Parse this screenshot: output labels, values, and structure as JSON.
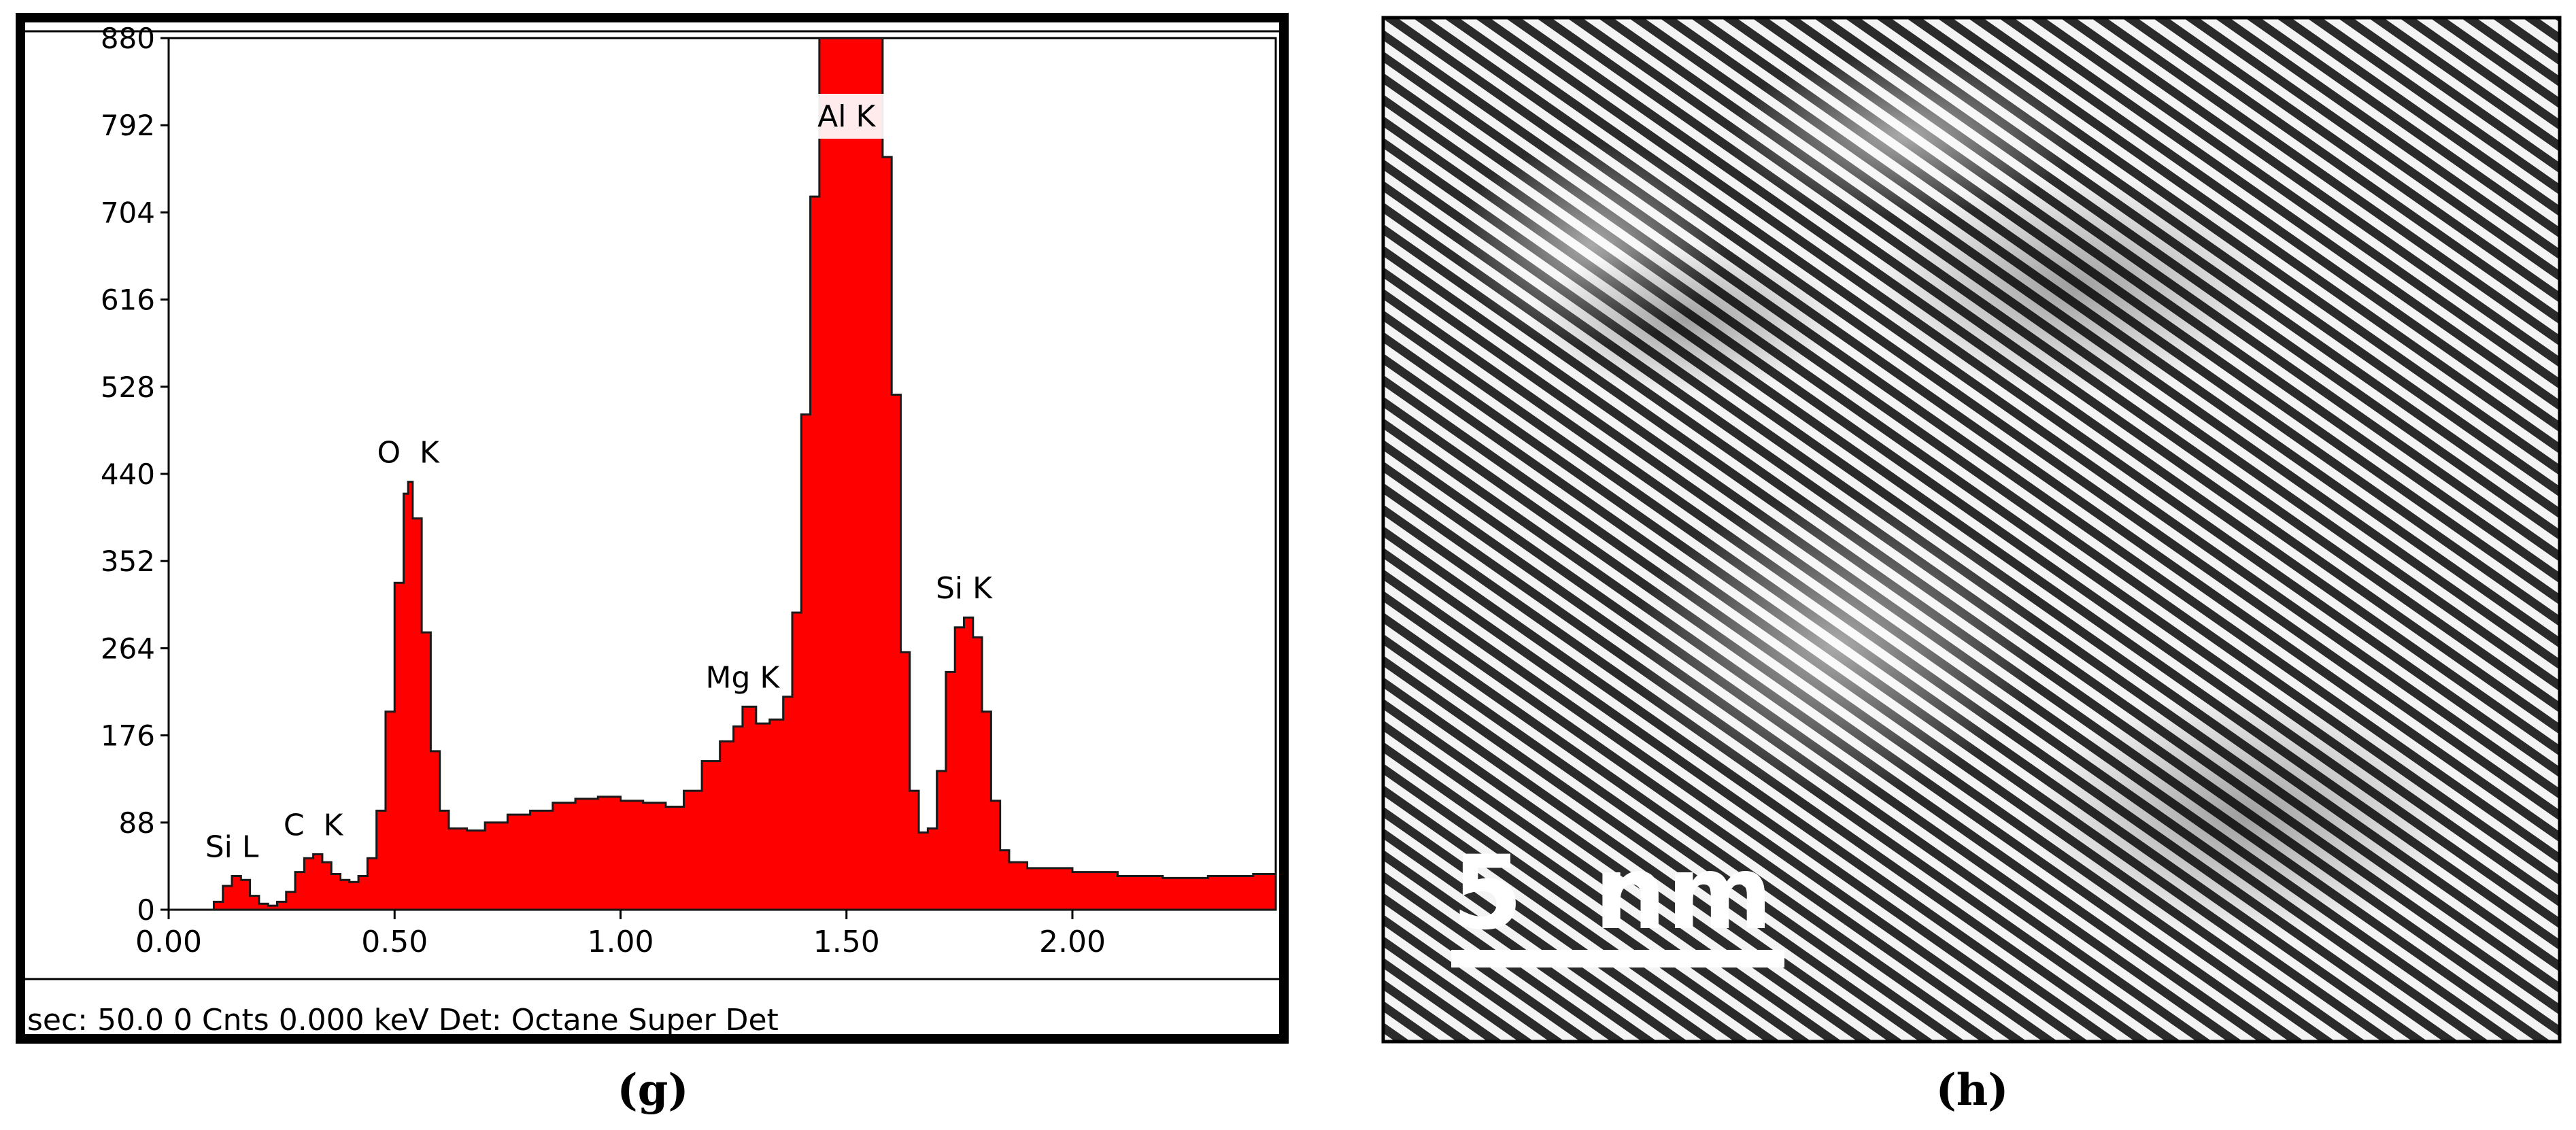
{
  "panels": [
    {
      "caption": "(g)",
      "chart_data": {
        "type": "area",
        "title": "",
        "xlabel": "",
        "ylabel": "",
        "xlim": [
          0.0,
          2.45
        ],
        "ylim": [
          0,
          880
        ],
        "x_ticks": [
          "0.00",
          "0.50",
          "1.00",
          "1.50",
          "2.00"
        ],
        "y_ticks": [
          "0",
          "88",
          "176",
          "264",
          "352",
          "440",
          "528",
          "616",
          "704",
          "792",
          "880"
        ],
        "grid": false,
        "legend": "none",
        "fill_color": "#ff0000",
        "line_color": "#1a1a1a",
        "series": [
          {
            "points": [
              [
                0.0,
                0
              ],
              [
                0.08,
                0
              ],
              [
                0.1,
                8
              ],
              [
                0.12,
                24
              ],
              [
                0.14,
                34
              ],
              [
                0.16,
                30
              ],
              [
                0.18,
                14
              ],
              [
                0.2,
                6
              ],
              [
                0.22,
                4
              ],
              [
                0.24,
                8
              ],
              [
                0.26,
                18
              ],
              [
                0.28,
                38
              ],
              [
                0.3,
                52
              ],
              [
                0.32,
                56
              ],
              [
                0.34,
                48
              ],
              [
                0.36,
                36
              ],
              [
                0.38,
                30
              ],
              [
                0.4,
                28
              ],
              [
                0.42,
                34
              ],
              [
                0.44,
                52
              ],
              [
                0.46,
                100
              ],
              [
                0.48,
                200
              ],
              [
                0.5,
                330
              ],
              [
                0.52,
                420
              ],
              [
                0.53,
                432
              ],
              [
                0.54,
                395
              ],
              [
                0.56,
                280
              ],
              [
                0.58,
                160
              ],
              [
                0.6,
                100
              ],
              [
                0.62,
                82
              ],
              [
                0.66,
                80
              ],
              [
                0.7,
                88
              ],
              [
                0.75,
                96
              ],
              [
                0.8,
                100
              ],
              [
                0.85,
                108
              ],
              [
                0.9,
                112
              ],
              [
                0.95,
                114
              ],
              [
                1.0,
                110
              ],
              [
                1.05,
                108
              ],
              [
                1.1,
                104
              ],
              [
                1.14,
                120
              ],
              [
                1.18,
                150
              ],
              [
                1.22,
                170
              ],
              [
                1.25,
                185
              ],
              [
                1.27,
                205
              ],
              [
                1.3,
                188
              ],
              [
                1.33,
                192
              ],
              [
                1.36,
                215
              ],
              [
                1.38,
                300
              ],
              [
                1.4,
                500
              ],
              [
                1.42,
                720
              ],
              [
                1.44,
                880
              ],
              [
                1.56,
                880
              ],
              [
                1.58,
                760
              ],
              [
                1.6,
                520
              ],
              [
                1.62,
                260
              ],
              [
                1.64,
                120
              ],
              [
                1.66,
                78
              ],
              [
                1.68,
                82
              ],
              [
                1.7,
                140
              ],
              [
                1.72,
                240
              ],
              [
                1.74,
                285
              ],
              [
                1.76,
                295
              ],
              [
                1.78,
                275
              ],
              [
                1.8,
                200
              ],
              [
                1.82,
                110
              ],
              [
                1.84,
                60
              ],
              [
                1.86,
                48
              ],
              [
                1.9,
                42
              ],
              [
                2.0,
                38
              ],
              [
                2.1,
                34
              ],
              [
                2.2,
                32
              ],
              [
                2.3,
                34
              ],
              [
                2.4,
                36
              ],
              [
                2.45,
                38
              ]
            ]
          }
        ],
        "peak_labels": [
          {
            "text": "Si L",
            "x": 0.14,
            "y": 34
          },
          {
            "text": "C  K",
            "x": 0.32,
            "y": 56
          },
          {
            "text": "O  K",
            "x": 0.53,
            "y": 432
          },
          {
            "text": "Mg K",
            "x": 1.27,
            "y": 205
          },
          {
            "text": "Al K",
            "x": 1.5,
            "y": 880
          },
          {
            "text": "Si K",
            "x": 1.76,
            "y": 295
          }
        ]
      },
      "status_text": "sec: 50.0 0 Cnts  0.000 keV Det: Octane Super Det"
    },
    {
      "caption": "(h)",
      "scale_bar_label": "5  nm"
    }
  ]
}
